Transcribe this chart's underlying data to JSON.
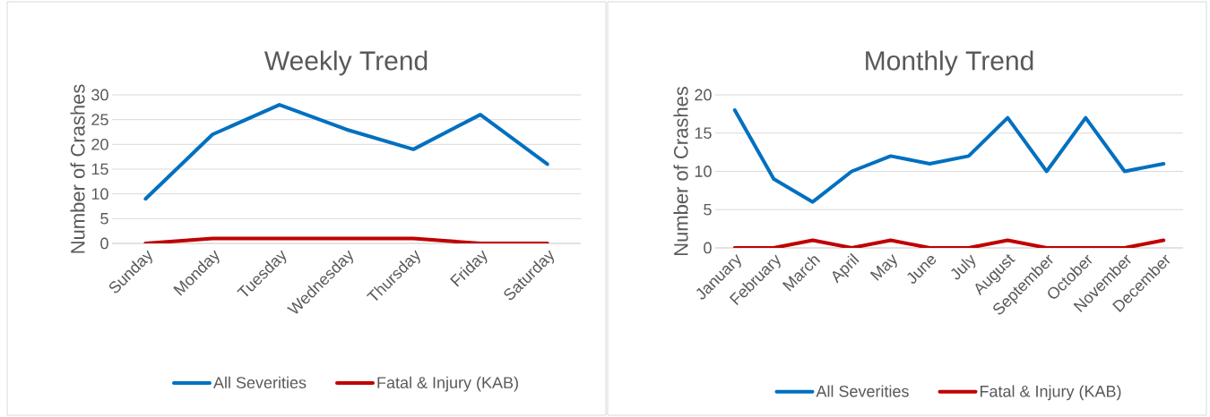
{
  "chart_data": [
    {
      "type": "line",
      "title": "Weekly Trend",
      "ylabel": "Number of Crashes",
      "categories": [
        "Sunday",
        "Monday",
        "Tuesday",
        "Wednesday",
        "Thursday",
        "Friday",
        "Saturday"
      ],
      "series": [
        {
          "name": "All Severities",
          "color": "#0070c0",
          "values": [
            9,
            22,
            28,
            23,
            19,
            26,
            16
          ]
        },
        {
          "name": "Fatal & Injury (KAB)",
          "color": "#c00000",
          "values": [
            0,
            1,
            1,
            1,
            1,
            0,
            0
          ]
        }
      ],
      "ylim": [
        0,
        30
      ],
      "yticks": [
        0,
        5,
        10,
        15,
        20,
        25,
        30
      ],
      "grid": "y",
      "legend": "bottom"
    },
    {
      "type": "line",
      "title": "Monthly Trend",
      "ylabel": "Number of Crashes",
      "categories": [
        "January",
        "February",
        "March",
        "April",
        "May",
        "June",
        "July",
        "August",
        "September",
        "October",
        "November",
        "December"
      ],
      "series": [
        {
          "name": "All Severities",
          "color": "#0070c0",
          "values": [
            18,
            9,
            6,
            10,
            12,
            11,
            12,
            17,
            10,
            17,
            10,
            11
          ]
        },
        {
          "name": "Fatal & Injury (KAB)",
          "color": "#c00000",
          "values": [
            0,
            0,
            1,
            0,
            1,
            0,
            0,
            1,
            0,
            0,
            0,
            1
          ]
        }
      ],
      "ylim": [
        0,
        20
      ],
      "yticks": [
        0,
        5,
        10,
        15,
        20
      ],
      "grid": "y",
      "legend": "bottom"
    }
  ]
}
